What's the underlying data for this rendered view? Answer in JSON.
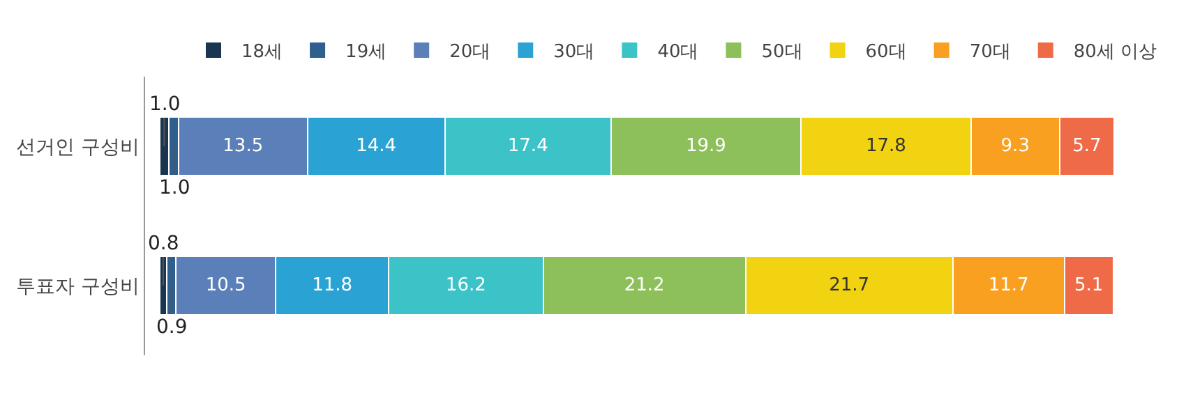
{
  "chart_data": {
    "type": "bar",
    "orientation": "horizontal",
    "stacked": true,
    "data_labels": true,
    "legend": "top",
    "categories": [
      "선거인 구성비",
      "투표자 구성비"
    ],
    "series": [
      {
        "name": "18세",
        "color": "#1a3550",
        "values": [
          1.0,
          0.8
        ],
        "value_labels": [
          "1.0",
          "0.8"
        ]
      },
      {
        "name": "19세",
        "color": "#2e5f8e",
        "values": [
          1.0,
          0.9
        ],
        "value_labels": [
          "1.0",
          "0.9"
        ]
      },
      {
        "name": "20대",
        "color": "#5b7fb8",
        "values": [
          13.5,
          10.5
        ]
      },
      {
        "name": "30대",
        "color": "#2aa3d4",
        "values": [
          14.4,
          11.8
        ]
      },
      {
        "name": "40대",
        "color": "#3cc3c8",
        "values": [
          17.4,
          16.2
        ]
      },
      {
        "name": "50대",
        "color": "#8dc05a",
        "values": [
          19.9,
          21.2
        ]
      },
      {
        "name": "60대",
        "color": "#f2d312",
        "values": [
          17.8,
          21.7
        ]
      },
      {
        "name": "70대",
        "color": "#f9a021",
        "values": [
          9.3,
          11.7
        ]
      },
      {
        "name": "80세 이상",
        "color": "#ef6b47",
        "values": [
          5.7,
          5.1
        ]
      }
    ]
  }
}
